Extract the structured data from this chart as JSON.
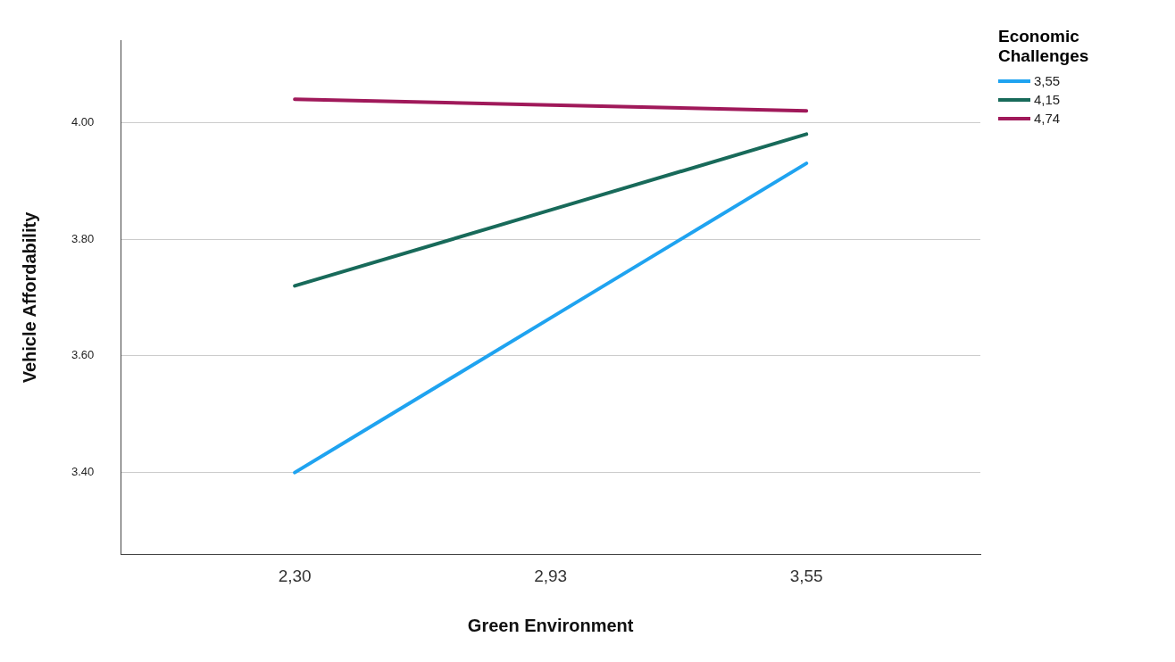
{
  "chart_data": {
    "type": "line",
    "xlabel": "Green Environment",
    "ylabel": "Vehicle Affordability",
    "legend_title": "Economic Challenges",
    "categories": [
      "2,30",
      "2,93",
      "3,55"
    ],
    "ylim": [
      3.26,
      4.14
    ],
    "yticks": [
      {
        "value": 3.4,
        "label": "3.40"
      },
      {
        "value": 3.6,
        "label": "3.60"
      },
      {
        "value": 3.8,
        "label": "3.80"
      },
      {
        "value": 4.0,
        "label": "4.00"
      }
    ],
    "grid": "y",
    "legend": "top right",
    "marker": "none",
    "line_style": "solid",
    "series": [
      {
        "name": "3,55",
        "color": "#1fa3f0",
        "values": [
          3.4,
          3.665,
          3.93
        ]
      },
      {
        "name": "4,15",
        "color": "#186a5a",
        "values": [
          3.72,
          3.85,
          3.98
        ]
      },
      {
        "name": "4,74",
        "color": "#a0195a",
        "values": [
          4.04,
          4.03,
          4.02
        ]
      }
    ]
  }
}
